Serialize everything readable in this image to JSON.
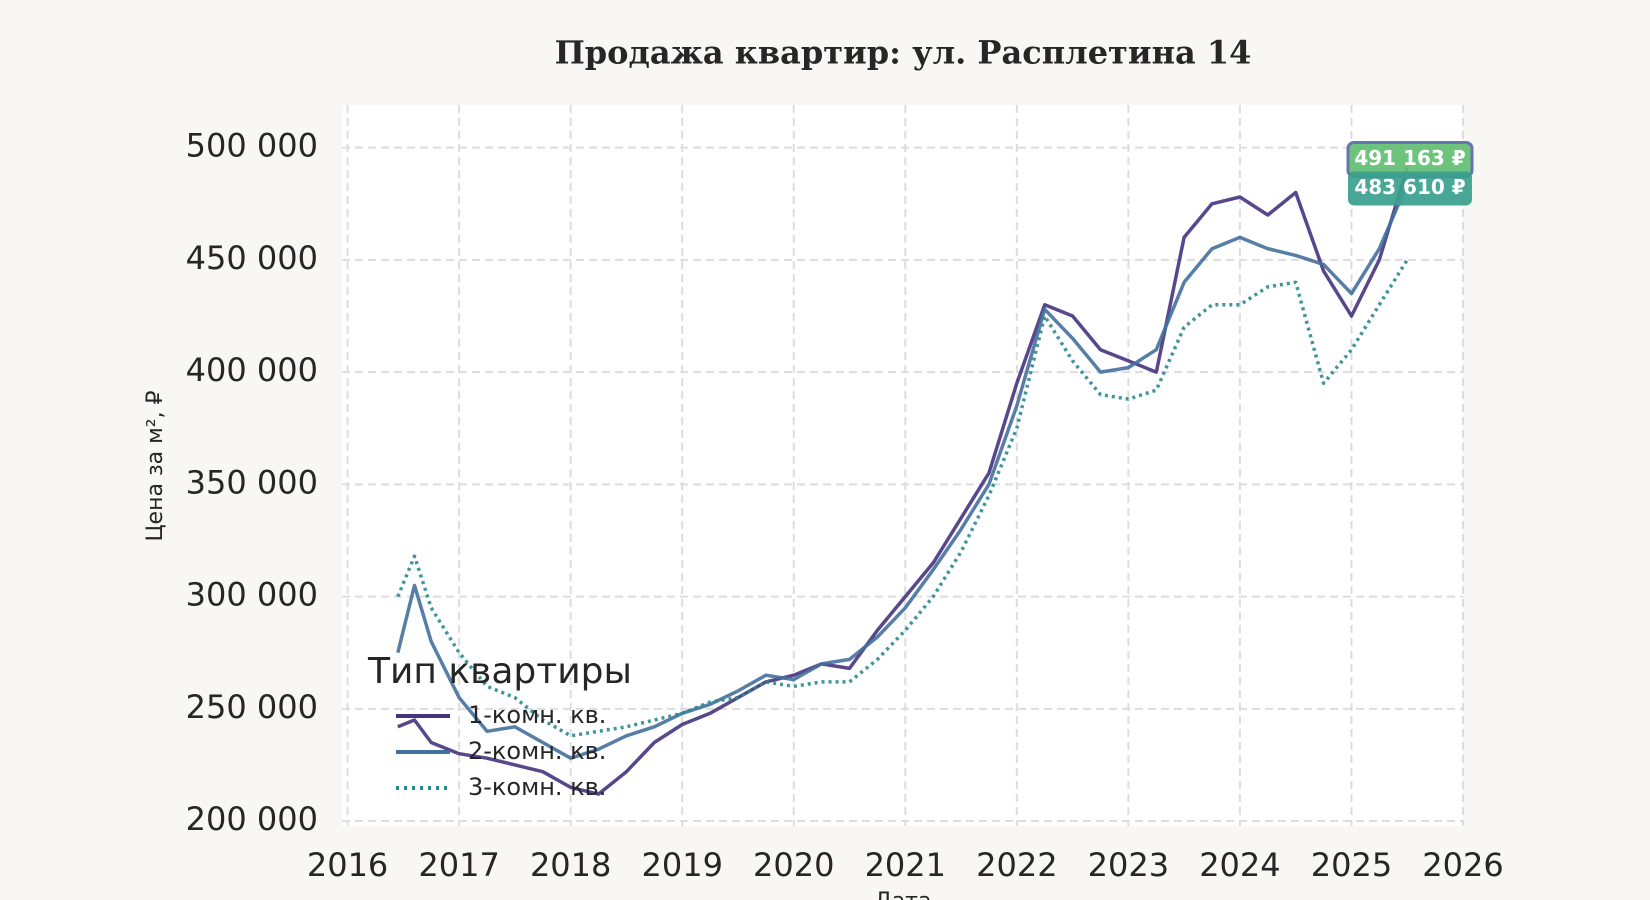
{
  "chart_data": {
    "type": "line",
    "title": "Продажа квартир: ул. Расплетина 14",
    "xlabel": "Дата",
    "ylabel": "Цена за м², ₽",
    "legend_title": "Тип квартиры",
    "legend": "lower left",
    "grid": true,
    "x": [
      2016.45,
      2016.6,
      2016.75,
      2017.0,
      2017.25,
      2017.5,
      2017.75,
      2018.0,
      2018.25,
      2018.5,
      2018.75,
      2019.0,
      2019.25,
      2019.5,
      2019.75,
      2020.0,
      2020.25,
      2020.5,
      2020.75,
      2021.0,
      2021.25,
      2021.5,
      2021.75,
      2022.0,
      2022.25,
      2022.5,
      2022.75,
      2023.0,
      2023.25,
      2023.5,
      2023.75,
      2024.0,
      2024.25,
      2024.5,
      2024.75,
      2025.0,
      2025.25,
      2025.5
    ],
    "xlim": [
      2015.95,
      2026
    ],
    "xticks": [
      2016,
      2017,
      2018,
      2019,
      2020,
      2021,
      2022,
      2023,
      2024,
      2025,
      2026
    ],
    "ylim": [
      197800,
      519000
    ],
    "yticks": [
      {
        "value": 200000,
        "label": "200 000"
      },
      {
        "value": 250000,
        "label": "250 000"
      },
      {
        "value": 300000,
        "label": "300 000"
      },
      {
        "value": 350000,
        "label": "350 000"
      },
      {
        "value": 400000,
        "label": "400 000"
      },
      {
        "value": 450000,
        "label": "450 000"
      },
      {
        "value": 500000,
        "label": "500 000"
      }
    ],
    "series": [
      {
        "name": "1-комн. кв.",
        "color": "#46337e",
        "style": "solid",
        "values": [
          242000,
          245000,
          235000,
          230000,
          228000,
          225000,
          222000,
          215000,
          212000,
          222000,
          235000,
          243000,
          248000,
          255000,
          262000,
          265000,
          270000,
          268000,
          285000,
          300000,
          315000,
          335000,
          355000,
          395000,
          430000,
          425000,
          410000,
          405000,
          400000,
          460000,
          475000,
          478000,
          470000,
          480000,
          445000,
          425000,
          450000,
          491163
        ]
      },
      {
        "name": "2-комн. кв.",
        "color": "#44709c",
        "style": "solid",
        "values": [
          275000,
          305000,
          280000,
          255000,
          240000,
          242000,
          235000,
          228000,
          232000,
          238000,
          242000,
          248000,
          252000,
          258000,
          265000,
          263000,
          270000,
          272000,
          282000,
          295000,
          312000,
          330000,
          350000,
          385000,
          428000,
          415000,
          400000,
          402000,
          410000,
          440000,
          455000,
          460000,
          455000,
          452000,
          448000,
          435000,
          455000,
          483610
        ]
      },
      {
        "name": "3-комн. кв.",
        "color": "#2a8a8e",
        "style": "dotted",
        "values": [
          300000,
          318000,
          295000,
          275000,
          260000,
          255000,
          245000,
          238000,
          240000,
          242000,
          245000,
          248000,
          253000,
          255000,
          262000,
          260000,
          262000,
          262000,
          272000,
          285000,
          300000,
          320000,
          345000,
          375000,
          425000,
          405000,
          390000,
          388000,
          392000,
          420000,
          430000,
          430000,
          438000,
          440000,
          395000,
          410000,
          430000,
          450000
        ]
      }
    ],
    "annotations": [
      {
        "text": "491 163 ₽",
        "color": "#62bf72"
      },
      {
        "text": "483 610 ₽",
        "color": "#3a9f8e"
      }
    ]
  }
}
